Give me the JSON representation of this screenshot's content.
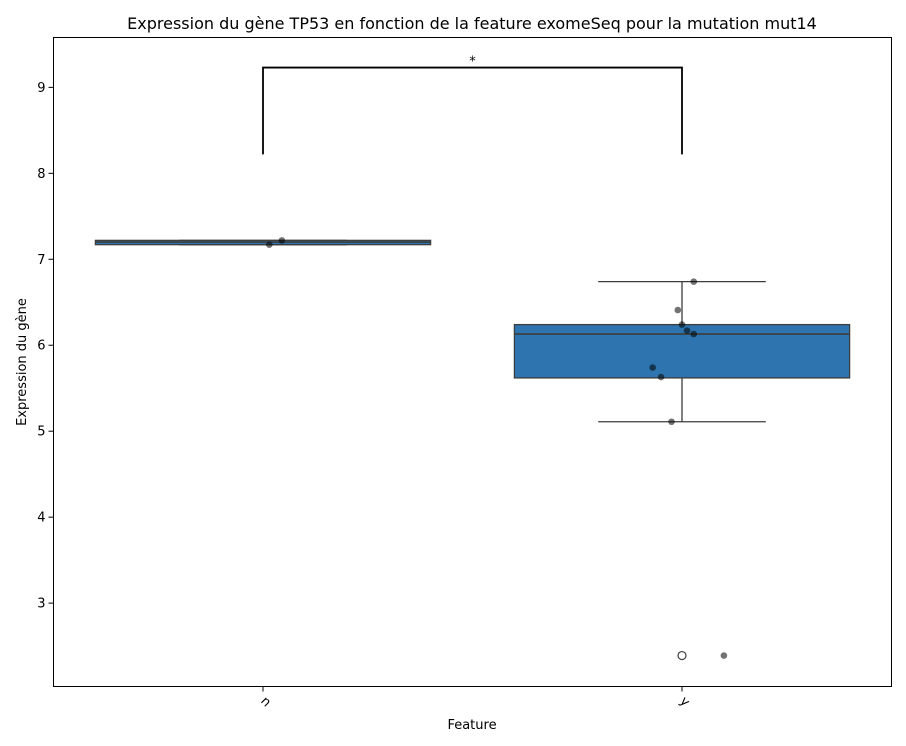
{
  "chart_data": {
    "type": "box",
    "title": "Expression du gène TP53 en fonction de la feature exomeSeq pour la mutation mut14",
    "xlabel": "Feature",
    "ylabel": "Expression du gène",
    "categories": [
      "n",
      "y"
    ],
    "ylim": [
      2.03,
      9.58
    ],
    "yticks": [
      3,
      4,
      5,
      6,
      7,
      8,
      9
    ],
    "grid": false,
    "box_color": "#2e75b0",
    "groups": [
      {
        "category": "n",
        "q1": 7.17,
        "median": 7.2,
        "q3": 7.22,
        "whisker_low": 7.17,
        "whisker_high": 7.22,
        "outliers": [],
        "points": [
          {
            "x_jitter": 0.045,
            "y": 7.22
          },
          {
            "x_jitter": 0.015,
            "y": 7.17
          }
        ]
      },
      {
        "category": "y",
        "q1": 5.62,
        "median": 6.13,
        "q3": 6.24,
        "whisker_low": 5.11,
        "whisker_high": 6.74,
        "outliers": [
          2.39
        ],
        "points": [
          {
            "x_jitter": 0.028,
            "y": 6.74
          },
          {
            "x_jitter": -0.01,
            "y": 6.41
          },
          {
            "x_jitter": 0.0,
            "y": 6.24
          },
          {
            "x_jitter": 0.012,
            "y": 6.17
          },
          {
            "x_jitter": 0.028,
            "y": 6.13
          },
          {
            "x_jitter": -0.07,
            "y": 5.74
          },
          {
            "x_jitter": -0.05,
            "y": 5.63
          },
          {
            "x_jitter": -0.025,
            "y": 5.11
          },
          {
            "x_jitter": 0.1,
            "y": 2.39
          }
        ]
      }
    ],
    "significance": {
      "from": "n",
      "to": "y",
      "y_bottom": 8.22,
      "y_top": 9.23,
      "label": "*"
    }
  }
}
